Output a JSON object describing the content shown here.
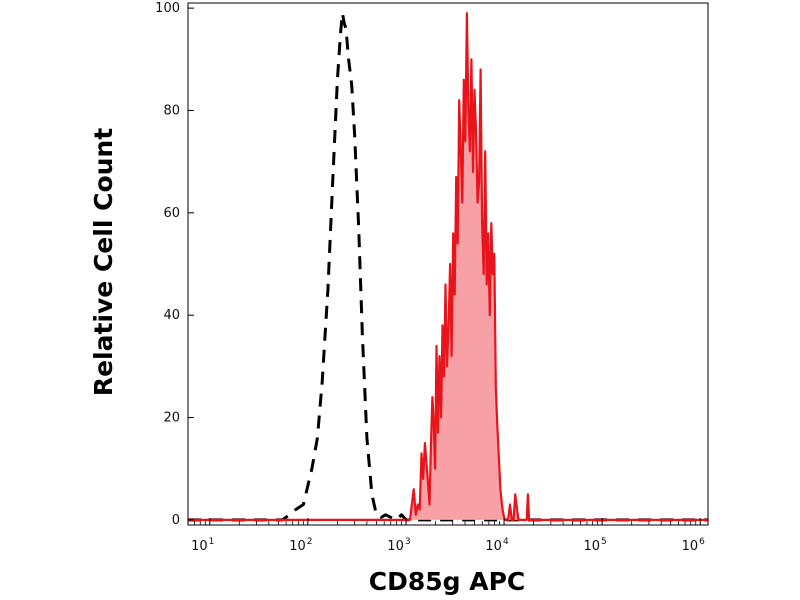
{
  "chart_data": {
    "type": "area",
    "xlabel": "CD85g APC",
    "ylabel": "Relative Cell Count",
    "xscale": "log",
    "xlim": [
      6,
      1200000
    ],
    "ylim": [
      -1,
      101
    ],
    "yticks": [
      0,
      20,
      40,
      60,
      80,
      100
    ],
    "xticks": [
      {
        "value": 10,
        "base": "10",
        "exp": "1"
      },
      {
        "value": 100,
        "base": "10",
        "exp": "2"
      },
      {
        "value": 1000,
        "base": "10",
        "exp": "3"
      },
      {
        "value": 10000,
        "base": "10",
        "exp": "4"
      },
      {
        "value": 100000,
        "base": "10",
        "exp": "5"
      },
      {
        "value": 1000000,
        "base": "10",
        "exp": "6"
      }
    ],
    "grid": false,
    "series": [
      {
        "style": "dashed-line",
        "color": "#000000",
        "x": [
          6,
          55,
          65,
          75,
          90,
          110,
          125,
          140,
          160,
          180,
          200,
          215,
          225,
          235,
          245,
          260,
          280,
          300,
          330,
          360,
          400,
          450,
          500,
          560,
          620,
          700,
          800,
          900,
          1000,
          1200000
        ],
        "y": [
          0,
          0,
          1,
          2,
          3,
          10,
          16,
          27,
          45,
          67,
          86,
          95,
          99,
          97,
          96,
          90,
          85,
          75,
          57,
          36,
          16,
          5,
          1,
          0.5,
          1,
          0.5,
          0,
          1,
          0,
          0
        ]
      },
      {
        "style": "filled-area",
        "color": "#e8141b",
        "fill": "#f7a1a6",
        "x": [
          6,
          1100,
          1200,
          1260,
          1320,
          1380,
          1440,
          1500,
          1560,
          1620,
          1680,
          1740,
          1800,
          1860,
          1920,
          1980,
          2050,
          2120,
          2200,
          2280,
          2360,
          2440,
          2530,
          2620,
          2720,
          2820,
          2920,
          3030,
          3140,
          3250,
          3370,
          3490,
          3620,
          3750,
          3890,
          4030,
          4180,
          4330,
          4490,
          4650,
          4820,
          5000,
          5180,
          5370,
          5570,
          5770,
          5980,
          6200,
          6430,
          6660,
          6900,
          7150,
          7410,
          7680,
          7960,
          8250,
          8550,
          8860,
          9180,
          9520,
          9870,
          10200,
          10600,
          11000,
          11500,
          12000,
          12500,
          13000,
          14000,
          15000,
          16000,
          17000,
          17500,
          18000,
          19000,
          20000,
          1200000
        ],
        "y": [
          0,
          0,
          6,
          1,
          3,
          2,
          13,
          8,
          15,
          11,
          7,
          3,
          15,
          24,
          19,
          10,
          34,
          17,
          32,
          20,
          38,
          28,
          46,
          30,
          38,
          50,
          32,
          56,
          44,
          67,
          54,
          82,
          72,
          62,
          86,
          74,
          99,
          80,
          72,
          90,
          68,
          84,
          76,
          62,
          66,
          88,
          58,
          48,
          72,
          46,
          56,
          40,
          58,
          48,
          52,
          26,
          18,
          12,
          6,
          3,
          1,
          0,
          0,
          0,
          3,
          0,
          0,
          5,
          0,
          0,
          0,
          0,
          5,
          0,
          0,
          0,
          0
        ]
      }
    ]
  }
}
